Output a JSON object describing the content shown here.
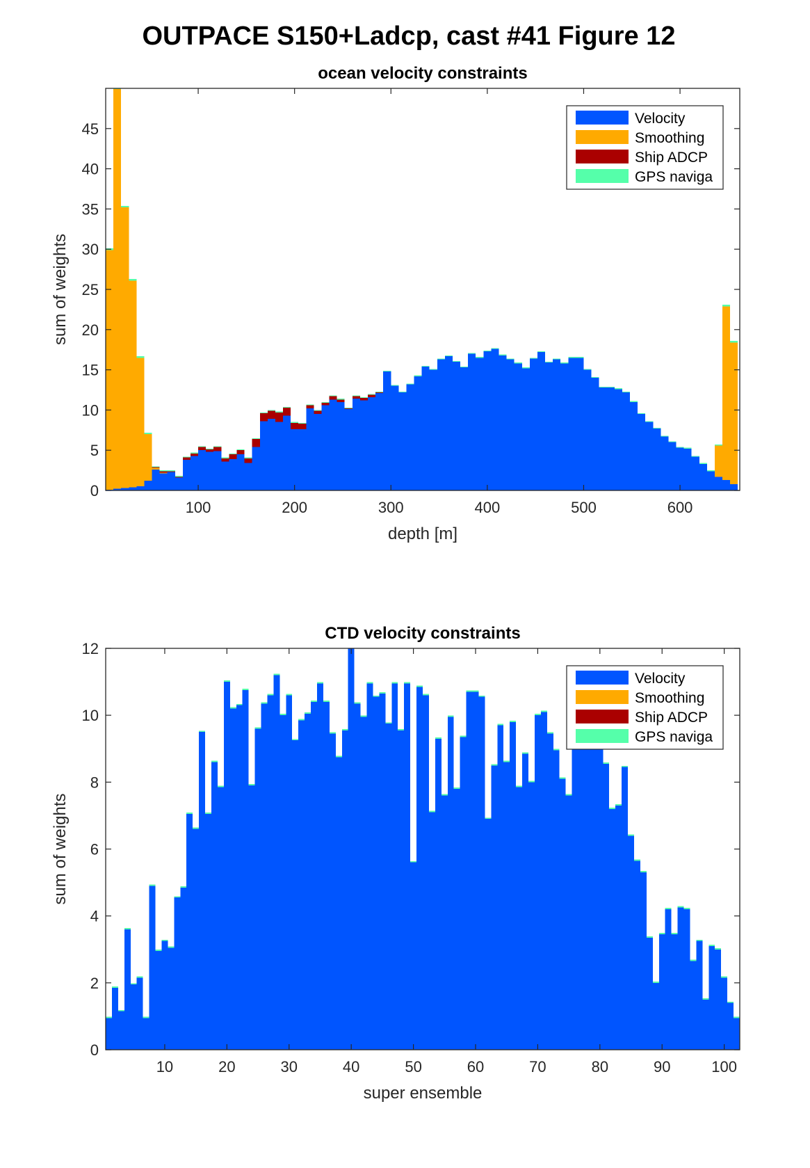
{
  "figure_title": "OUTPACE S150+Ladcp, cast #41  Figure 12",
  "colors": {
    "velocity": "#0055ff",
    "smoothing": "#ffaa00",
    "ship_adcp": "#aa0000",
    "gps": "#55ffaa"
  },
  "chart_data": [
    {
      "type": "bar",
      "stacked": true,
      "title": "ocean velocity constraints",
      "xlabel": "depth [m]",
      "ylabel": "sum of weights",
      "xlim": [
        4,
        662
      ],
      "ylim": [
        0,
        50
      ],
      "bin_width": 8,
      "xticks": [
        100,
        200,
        300,
        400,
        500,
        600
      ],
      "yticks": [
        0,
        5,
        10,
        15,
        20,
        25,
        30,
        35,
        40,
        45
      ],
      "legend": {
        "placement": "top-right",
        "entries": [
          "Velocity",
          "Smoothing",
          "Ship ADCP",
          "GPS naviga"
        ]
      },
      "x": [
        8,
        16,
        24,
        32,
        40,
        48,
        56,
        64,
        72,
        80,
        88,
        96,
        104,
        112,
        120,
        128,
        136,
        144,
        152,
        160,
        168,
        176,
        184,
        192,
        200,
        208,
        216,
        224,
        232,
        240,
        248,
        256,
        264,
        272,
        280,
        288,
        296,
        304,
        312,
        320,
        328,
        336,
        344,
        352,
        360,
        368,
        376,
        384,
        392,
        400,
        408,
        416,
        424,
        432,
        440,
        448,
        456,
        464,
        472,
        480,
        488,
        496,
        504,
        512,
        520,
        528,
        536,
        544,
        552,
        560,
        568,
        576,
        584,
        592,
        600,
        608,
        616,
        624,
        632,
        640,
        648,
        656
      ],
      "series": [
        {
          "name": "Velocity",
          "color_key": "velocity",
          "values": [
            0.1,
            0.2,
            0.3,
            0.4,
            0.5,
            1.2,
            2.6,
            2.1,
            2.3,
            1.6,
            3.8,
            4.3,
            5.0,
            4.8,
            4.9,
            3.6,
            3.9,
            4.5,
            3.4,
            5.4,
            8.6,
            8.9,
            8.5,
            9.3,
            7.6,
            7.6,
            10.2,
            9.5,
            10.6,
            11.3,
            11.0,
            10.1,
            11.4,
            11.2,
            11.6,
            12.1,
            14.8,
            13.0,
            12.2,
            13.2,
            14.2,
            15.4,
            15.0,
            16.3,
            16.7,
            16.0,
            15.3,
            17.0,
            16.5,
            17.3,
            17.6,
            16.8,
            16.3,
            15.8,
            15.2,
            16.4,
            17.2,
            15.9,
            16.3,
            15.8,
            16.5,
            16.5,
            15.0,
            14.0,
            12.8,
            12.8,
            12.6,
            12.2,
            11.0,
            9.5,
            8.5,
            7.7,
            6.7,
            6.0,
            5.3,
            5.2,
            4.2,
            3.3,
            2.4,
            1.7,
            1.3,
            0.8
          ]
        },
        {
          "name": "Smoothing",
          "color_key": "smoothing",
          "values": [
            29.8,
            49.7,
            34.9,
            25.7,
            16.0,
            5.8,
            0.2,
            0.1,
            0,
            0,
            0,
            0,
            0,
            0,
            0,
            0,
            0,
            0,
            0,
            0,
            0,
            0,
            0,
            0,
            0,
            0,
            0,
            0,
            0,
            0,
            0,
            0,
            0,
            0,
            0,
            0,
            0,
            0,
            0,
            0,
            0,
            0,
            0,
            0,
            0,
            0,
            0,
            0,
            0,
            0,
            0,
            0,
            0,
            0,
            0,
            0,
            0,
            0,
            0,
            0,
            0,
            0,
            0,
            0,
            0,
            0,
            0,
            0,
            0,
            0,
            0,
            0,
            0,
            0,
            0,
            0,
            0,
            0,
            0,
            3.9,
            21.6,
            17.6
          ]
        },
        {
          "name": "Ship ADCP",
          "color_key": "ship_adcp",
          "values": [
            0,
            0,
            0,
            0,
            0,
            0,
            0.1,
            0.2,
            0.1,
            0.1,
            0.3,
            0.3,
            0.4,
            0.3,
            0.5,
            0.4,
            0.6,
            0.5,
            0.6,
            1.0,
            1.0,
            1.0,
            1.2,
            1.0,
            0.8,
            0.7,
            0.4,
            0.4,
            0.3,
            0.4,
            0.3,
            0.1,
            0.3,
            0.3,
            0.3,
            0.1,
            0,
            0,
            0,
            0,
            0,
            0,
            0,
            0,
            0,
            0,
            0,
            0,
            0,
            0,
            0,
            0,
            0,
            0,
            0,
            0,
            0,
            0,
            0,
            0,
            0,
            0,
            0,
            0,
            0,
            0,
            0,
            0,
            0,
            0,
            0,
            0,
            0,
            0,
            0,
            0,
            0,
            0,
            0,
            0,
            0,
            0
          ]
        },
        {
          "name": "GPS naviga",
          "color_key": "gps",
          "values": [
            0.2,
            0.2,
            0.2,
            0.2,
            0.2,
            0.2,
            0.1,
            0.1,
            0.1,
            0.1,
            0.1,
            0.1,
            0.1,
            0.1,
            0.1,
            0.1,
            0.1,
            0.1,
            0.1,
            0.1,
            0.1,
            0.1,
            0.1,
            0.1,
            0.1,
            0.1,
            0.1,
            0.1,
            0.1,
            0.1,
            0.1,
            0.1,
            0.1,
            0.1,
            0.1,
            0.1,
            0.1,
            0.1,
            0.1,
            0.1,
            0.1,
            0.1,
            0.1,
            0.1,
            0.1,
            0.1,
            0.1,
            0.1,
            0.1,
            0.1,
            0.1,
            0.1,
            0.1,
            0.1,
            0.1,
            0.1,
            0.1,
            0.1,
            0.1,
            0.1,
            0.1,
            0.1,
            0.1,
            0.1,
            0.1,
            0.1,
            0.1,
            0.1,
            0.1,
            0.1,
            0.1,
            0.1,
            0.1,
            0.1,
            0.1,
            0.1,
            0.1,
            0.1,
            0.1,
            0.1,
            0.2,
            0.2
          ]
        }
      ]
    },
    {
      "type": "bar",
      "stacked": true,
      "title": "CTD velocity constraints",
      "xlabel": "super ensemble",
      "ylabel": "sum of weights",
      "xlim": [
        0.5,
        102.5
      ],
      "ylim": [
        0,
        12
      ],
      "bin_width": 1,
      "xticks": [
        10,
        20,
        30,
        40,
        50,
        60,
        70,
        80,
        90,
        100
      ],
      "yticks": [
        0,
        2,
        4,
        6,
        8,
        10,
        12
      ],
      "legend": {
        "placement": "top-right",
        "entries": [
          "Velocity",
          "Smoothing",
          "Ship ADCP",
          "GPS naviga"
        ]
      },
      "x": [
        1,
        2,
        3,
        4,
        5,
        6,
        7,
        8,
        9,
        10,
        11,
        12,
        13,
        14,
        15,
        16,
        17,
        18,
        19,
        20,
        21,
        22,
        23,
        24,
        25,
        26,
        27,
        28,
        29,
        30,
        31,
        32,
        33,
        34,
        35,
        36,
        37,
        38,
        39,
        40,
        41,
        42,
        43,
        44,
        45,
        46,
        47,
        48,
        49,
        50,
        51,
        52,
        53,
        54,
        55,
        56,
        57,
        58,
        59,
        60,
        61,
        62,
        63,
        64,
        65,
        66,
        67,
        68,
        69,
        70,
        71,
        72,
        73,
        74,
        75,
        76,
        77,
        78,
        79,
        80,
        81,
        82,
        83,
        84,
        85,
        86,
        87,
        88,
        89,
        90,
        91,
        92,
        93,
        94,
        95,
        96,
        97,
        98,
        99,
        100,
        101,
        102
      ],
      "series": [
        {
          "name": "Velocity",
          "color_key": "velocity",
          "values": [
            0.95,
            1.85,
            1.15,
            3.6,
            1.95,
            2.15,
            0.95,
            4.9,
            2.95,
            3.25,
            3.05,
            4.55,
            4.85,
            7.05,
            6.6,
            9.5,
            7.05,
            8.6,
            7.85,
            11.0,
            10.2,
            10.3,
            10.75,
            7.9,
            9.6,
            10.35,
            10.6,
            11.2,
            10.0,
            10.6,
            9.25,
            9.85,
            10.05,
            10.4,
            10.95,
            10.4,
            9.45,
            8.75,
            9.55,
            12.0,
            10.35,
            9.95,
            10.95,
            10.55,
            10.65,
            9.75,
            10.95,
            9.55,
            10.95,
            5.6,
            10.85,
            10.6,
            7.1,
            9.3,
            7.6,
            9.95,
            7.8,
            9.35,
            10.7,
            10.7,
            10.55,
            6.9,
            8.5,
            9.7,
            8.6,
            9.8,
            7.85,
            8.85,
            8.0,
            10.0,
            10.1,
            9.45,
            8.95,
            8.1,
            7.6,
            9.55,
            9.85,
            9.55,
            9.1,
            9.3,
            8.55,
            7.2,
            7.3,
            8.45,
            6.4,
            5.65,
            5.3,
            3.35,
            2.0,
            3.45,
            4.2,
            3.45,
            4.25,
            4.2,
            2.65,
            3.25,
            1.5,
            3.1,
            3.0,
            2.15,
            1.4,
            0.95
          ]
        },
        {
          "name": "Smoothing",
          "color_key": "smoothing",
          "values": [
            0,
            0,
            0,
            0,
            0,
            0,
            0,
            0,
            0,
            0,
            0,
            0,
            0,
            0,
            0,
            0,
            0,
            0,
            0,
            0,
            0,
            0,
            0,
            0,
            0,
            0,
            0,
            0,
            0,
            0,
            0,
            0,
            0,
            0,
            0,
            0,
            0,
            0,
            0,
            0,
            0,
            0,
            0,
            0,
            0,
            0,
            0,
            0,
            0,
            0,
            0,
            0,
            0,
            0,
            0,
            0,
            0,
            0,
            0,
            0,
            0,
            0,
            0,
            0,
            0,
            0,
            0,
            0,
            0,
            0,
            0,
            0,
            0,
            0,
            0,
            0,
            0,
            0,
            0,
            0,
            0,
            0,
            0,
            0,
            0,
            0,
            0,
            0,
            0,
            0,
            0,
            0,
            0,
            0,
            0,
            0,
            0,
            0,
            0,
            0,
            0,
            0
          ]
        },
        {
          "name": "Ship ADCP",
          "color_key": "ship_adcp",
          "values": [
            0,
            0,
            0,
            0,
            0,
            0,
            0,
            0,
            0,
            0,
            0,
            0,
            0,
            0,
            0,
            0,
            0,
            0,
            0,
            0,
            0,
            0,
            0,
            0,
            0,
            0,
            0,
            0,
            0,
            0,
            0,
            0,
            0,
            0,
            0,
            0,
            0,
            0,
            0,
            0,
            0,
            0,
            0,
            0,
            0,
            0,
            0,
            0,
            0,
            0,
            0,
            0,
            0,
            0,
            0,
            0,
            0,
            0,
            0,
            0,
            0,
            0,
            0,
            0,
            0,
            0,
            0,
            0,
            0,
            0,
            0,
            0,
            0,
            0,
            0,
            0,
            0,
            0,
            0,
            0,
            0,
            0,
            0,
            0,
            0,
            0,
            0,
            0,
            0,
            0,
            0,
            0,
            0,
            0,
            0,
            0,
            0,
            0,
            0,
            0,
            0,
            0
          ]
        },
        {
          "name": "GPS naviga",
          "color_key": "gps",
          "values": [
            0.04,
            0.04,
            0.04,
            0.04,
            0.04,
            0.04,
            0.04,
            0.04,
            0.04,
            0.04,
            0.04,
            0.04,
            0.04,
            0.04,
            0.04,
            0.04,
            0.04,
            0.04,
            0.04,
            0.04,
            0.04,
            0.04,
            0.04,
            0.04,
            0.04,
            0.04,
            0.04,
            0.04,
            0.04,
            0.04,
            0.04,
            0.04,
            0.04,
            0.04,
            0.04,
            0.04,
            0.04,
            0.04,
            0.04,
            0.04,
            0.04,
            0.04,
            0.04,
            0.04,
            0.04,
            0.04,
            0.04,
            0.04,
            0.04,
            0.04,
            0.04,
            0.04,
            0.04,
            0.04,
            0.04,
            0.04,
            0.04,
            0.04,
            0.04,
            0.04,
            0.04,
            0.04,
            0.04,
            0.04,
            0.04,
            0.04,
            0.04,
            0.04,
            0.04,
            0.04,
            0.04,
            0.04,
            0.04,
            0.04,
            0.04,
            0.04,
            0.04,
            0.04,
            0.04,
            0.04,
            0.04,
            0.04,
            0.04,
            0.04,
            0.04,
            0.04,
            0.04,
            0.04,
            0.04,
            0.04,
            0.04,
            0.04,
            0.04,
            0.04,
            0.04,
            0.04,
            0.04,
            0.04,
            0.04,
            0.04,
            0.04,
            0.04
          ]
        }
      ]
    }
  ]
}
